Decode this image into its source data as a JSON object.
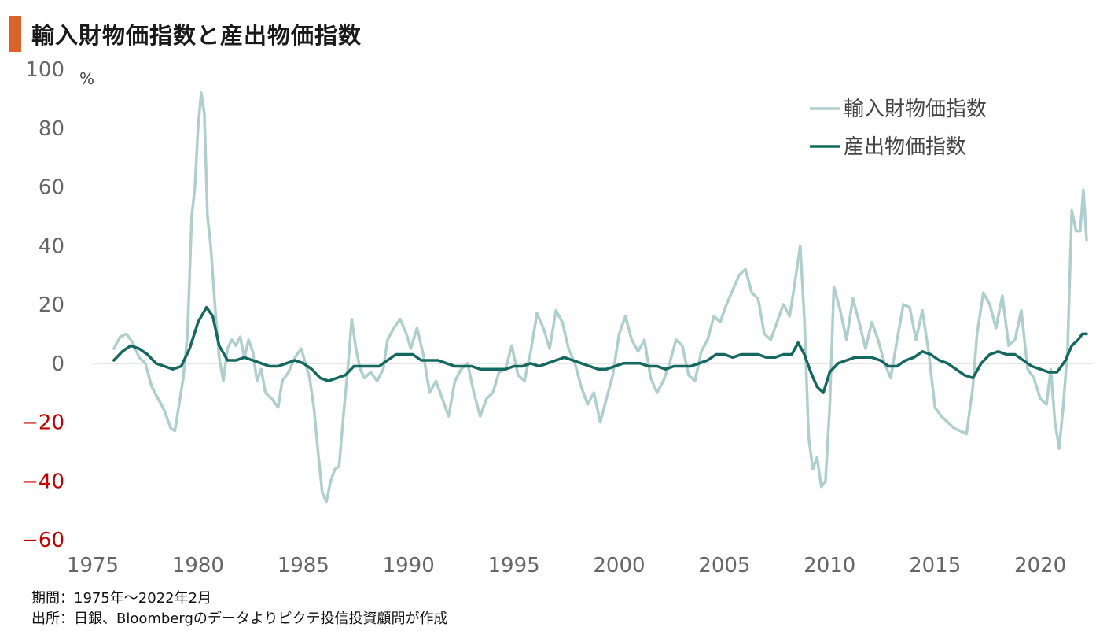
{
  "title": "輸入財物価指数と産出物価指数",
  "unit_label": "%",
  "colors": {
    "title_accent": "#d9652b",
    "import_series": "#aecfcd",
    "output_series": "#14685f",
    "negative_tick": "#c00000",
    "axis_tick": "#666666",
    "zero_line": "#cccccc"
  },
  "chart_data": {
    "type": "line",
    "xlabel": "",
    "ylabel": "",
    "xlim": [
      1975,
      2022.5
    ],
    "ylim": [
      -60,
      100
    ],
    "x_ticks": [
      1975,
      1980,
      1985,
      1990,
      1995,
      2000,
      2005,
      2010,
      2015,
      2020
    ],
    "y_ticks": [
      100,
      80,
      60,
      40,
      20,
      0,
      -20,
      -40,
      -60
    ],
    "grid": false,
    "legend_position": "top-right",
    "series": [
      {
        "name": "輸入財物価指数",
        "color": "#aecfcd",
        "points": [
          [
            1976.0,
            5
          ],
          [
            1976.3,
            9
          ],
          [
            1976.6,
            10
          ],
          [
            1976.9,
            7
          ],
          [
            1977.2,
            2
          ],
          [
            1977.5,
            0
          ],
          [
            1977.8,
            -8
          ],
          [
            1978.1,
            -12
          ],
          [
            1978.4,
            -16
          ],
          [
            1978.7,
            -22
          ],
          [
            1978.9,
            -23
          ],
          [
            1979.1,
            -14
          ],
          [
            1979.3,
            -5
          ],
          [
            1979.5,
            10
          ],
          [
            1979.7,
            50
          ],
          [
            1979.85,
            60
          ],
          [
            1980.0,
            80
          ],
          [
            1980.15,
            92
          ],
          [
            1980.3,
            85
          ],
          [
            1980.45,
            50
          ],
          [
            1980.6,
            40
          ],
          [
            1980.8,
            20
          ],
          [
            1981.0,
            2
          ],
          [
            1981.2,
            -6
          ],
          [
            1981.4,
            5
          ],
          [
            1981.6,
            8
          ],
          [
            1981.8,
            6
          ],
          [
            1982.0,
            9
          ],
          [
            1982.2,
            2
          ],
          [
            1982.4,
            8
          ],
          [
            1982.6,
            4
          ],
          [
            1982.8,
            -6
          ],
          [
            1983.0,
            -2
          ],
          [
            1983.2,
            -10
          ],
          [
            1983.5,
            -12
          ],
          [
            1983.8,
            -15
          ],
          [
            1984.0,
            -6
          ],
          [
            1984.3,
            -3
          ],
          [
            1984.6,
            2
          ],
          [
            1984.9,
            5
          ],
          [
            1985.1,
            0
          ],
          [
            1985.3,
            -5
          ],
          [
            1985.5,
            -15
          ],
          [
            1985.7,
            -30
          ],
          [
            1985.9,
            -44
          ],
          [
            1986.1,
            -47
          ],
          [
            1986.3,
            -40
          ],
          [
            1986.5,
            -36
          ],
          [
            1986.7,
            -35
          ],
          [
            1986.9,
            -18
          ],
          [
            1987.1,
            -3
          ],
          [
            1987.3,
            15
          ],
          [
            1987.5,
            5
          ],
          [
            1987.7,
            -2
          ],
          [
            1987.9,
            -5
          ],
          [
            1988.2,
            -3
          ],
          [
            1988.5,
            -6
          ],
          [
            1988.8,
            -2
          ],
          [
            1989.0,
            8
          ],
          [
            1989.3,
            12
          ],
          [
            1989.6,
            15
          ],
          [
            1989.9,
            10
          ],
          [
            1990.1,
            5
          ],
          [
            1990.4,
            12
          ],
          [
            1990.7,
            3
          ],
          [
            1991.0,
            -10
          ],
          [
            1991.3,
            -6
          ],
          [
            1991.6,
            -12
          ],
          [
            1991.9,
            -18
          ],
          [
            1992.2,
            -6
          ],
          [
            1992.5,
            -2
          ],
          [
            1992.8,
            0
          ],
          [
            1993.1,
            -10
          ],
          [
            1993.4,
            -18
          ],
          [
            1993.7,
            -12
          ],
          [
            1994.0,
            -10
          ],
          [
            1994.3,
            -3
          ],
          [
            1994.6,
            -2
          ],
          [
            1994.9,
            6
          ],
          [
            1995.2,
            -4
          ],
          [
            1995.5,
            -6
          ],
          [
            1995.8,
            4
          ],
          [
            1996.1,
            17
          ],
          [
            1996.4,
            12
          ],
          [
            1996.7,
            5
          ],
          [
            1997.0,
            18
          ],
          [
            1997.3,
            14
          ],
          [
            1997.6,
            5
          ],
          [
            1997.9,
            0
          ],
          [
            1998.2,
            -8
          ],
          [
            1998.5,
            -14
          ],
          [
            1998.8,
            -10
          ],
          [
            1999.1,
            -20
          ],
          [
            1999.4,
            -12
          ],
          [
            1999.7,
            -4
          ],
          [
            2000.0,
            10
          ],
          [
            2000.3,
            16
          ],
          [
            2000.6,
            8
          ],
          [
            2000.9,
            4
          ],
          [
            2001.2,
            8
          ],
          [
            2001.5,
            -5
          ],
          [
            2001.8,
            -10
          ],
          [
            2002.1,
            -6
          ],
          [
            2002.4,
            0
          ],
          [
            2002.7,
            8
          ],
          [
            2003.0,
            6
          ],
          [
            2003.3,
            -4
          ],
          [
            2003.6,
            -6
          ],
          [
            2003.9,
            4
          ],
          [
            2004.2,
            8
          ],
          [
            2004.5,
            16
          ],
          [
            2004.8,
            14
          ],
          [
            2005.1,
            20
          ],
          [
            2005.4,
            25
          ],
          [
            2005.7,
            30
          ],
          [
            2006.0,
            32
          ],
          [
            2006.3,
            24
          ],
          [
            2006.6,
            22
          ],
          [
            2006.9,
            10
          ],
          [
            2007.2,
            8
          ],
          [
            2007.5,
            14
          ],
          [
            2007.8,
            20
          ],
          [
            2008.1,
            16
          ],
          [
            2008.4,
            30
          ],
          [
            2008.6,
            40
          ],
          [
            2008.8,
            15
          ],
          [
            2009.0,
            -25
          ],
          [
            2009.2,
            -36
          ],
          [
            2009.4,
            -32
          ],
          [
            2009.6,
            -42
          ],
          [
            2009.8,
            -40
          ],
          [
            2010.0,
            -15
          ],
          [
            2010.2,
            26
          ],
          [
            2010.5,
            18
          ],
          [
            2010.8,
            8
          ],
          [
            2011.1,
            22
          ],
          [
            2011.4,
            14
          ],
          [
            2011.7,
            5
          ],
          [
            2012.0,
            14
          ],
          [
            2012.3,
            8
          ],
          [
            2012.6,
            0
          ],
          [
            2012.9,
            -5
          ],
          [
            2013.2,
            8
          ],
          [
            2013.5,
            20
          ],
          [
            2013.8,
            19
          ],
          [
            2014.1,
            8
          ],
          [
            2014.4,
            18
          ],
          [
            2014.7,
            4
          ],
          [
            2015.0,
            -15
          ],
          [
            2015.3,
            -18
          ],
          [
            2015.6,
            -20
          ],
          [
            2015.9,
            -22
          ],
          [
            2016.2,
            -23
          ],
          [
            2016.5,
            -24
          ],
          [
            2016.8,
            -8
          ],
          [
            2017.0,
            10
          ],
          [
            2017.3,
            24
          ],
          [
            2017.6,
            20
          ],
          [
            2017.9,
            12
          ],
          [
            2018.2,
            23
          ],
          [
            2018.5,
            6
          ],
          [
            2018.8,
            8
          ],
          [
            2019.1,
            18
          ],
          [
            2019.4,
            -2
          ],
          [
            2019.7,
            -5
          ],
          [
            2020.0,
            -12
          ],
          [
            2020.3,
            -14
          ],
          [
            2020.5,
            -2
          ],
          [
            2020.7,
            -20
          ],
          [
            2020.9,
            -29
          ],
          [
            2021.1,
            -14
          ],
          [
            2021.3,
            5
          ],
          [
            2021.5,
            52
          ],
          [
            2021.7,
            45
          ],
          [
            2021.9,
            45
          ],
          [
            2022.05,
            59
          ],
          [
            2022.2,
            42
          ]
        ]
      },
      {
        "name": "産出物価指数",
        "color": "#14685f",
        "points": [
          [
            1976.0,
            1
          ],
          [
            1976.4,
            4
          ],
          [
            1976.8,
            6
          ],
          [
            1977.2,
            5
          ],
          [
            1977.6,
            3
          ],
          [
            1978.0,
            0
          ],
          [
            1978.4,
            -1
          ],
          [
            1978.8,
            -2
          ],
          [
            1979.2,
            -1
          ],
          [
            1979.6,
            5
          ],
          [
            1980.0,
            14
          ],
          [
            1980.4,
            19
          ],
          [
            1980.7,
            16
          ],
          [
            1981.0,
            6
          ],
          [
            1981.4,
            1
          ],
          [
            1981.8,
            1
          ],
          [
            1982.2,
            2
          ],
          [
            1982.6,
            1
          ],
          [
            1983.0,
            0
          ],
          [
            1983.4,
            -1
          ],
          [
            1983.8,
            -1
          ],
          [
            1984.2,
            0
          ],
          [
            1984.6,
            1
          ],
          [
            1985.0,
            0
          ],
          [
            1985.4,
            -2
          ],
          [
            1985.8,
            -5
          ],
          [
            1986.2,
            -6
          ],
          [
            1986.6,
            -5
          ],
          [
            1987.0,
            -4
          ],
          [
            1987.4,
            -1
          ],
          [
            1987.8,
            -1
          ],
          [
            1988.2,
            -1
          ],
          [
            1988.6,
            -1
          ],
          [
            1989.0,
            1
          ],
          [
            1989.4,
            3
          ],
          [
            1989.8,
            3
          ],
          [
            1990.2,
            3
          ],
          [
            1990.6,
            1
          ],
          [
            1991.0,
            1
          ],
          [
            1991.4,
            1
          ],
          [
            1991.8,
            0
          ],
          [
            1992.2,
            -1
          ],
          [
            1992.6,
            -1
          ],
          [
            1993.0,
            -1
          ],
          [
            1993.4,
            -2
          ],
          [
            1993.8,
            -2
          ],
          [
            1994.2,
            -2
          ],
          [
            1994.6,
            -2
          ],
          [
            1995.0,
            -1
          ],
          [
            1995.4,
            -1
          ],
          [
            1995.8,
            0
          ],
          [
            1996.2,
            -1
          ],
          [
            1996.6,
            0
          ],
          [
            1997.0,
            1
          ],
          [
            1997.4,
            2
          ],
          [
            1997.8,
            1
          ],
          [
            1998.2,
            0
          ],
          [
            1998.6,
            -1
          ],
          [
            1999.0,
            -2
          ],
          [
            1999.4,
            -2
          ],
          [
            1999.8,
            -1
          ],
          [
            2000.2,
            0
          ],
          [
            2000.6,
            0
          ],
          [
            2001.0,
            0
          ],
          [
            2001.4,
            -1
          ],
          [
            2001.8,
            -1
          ],
          [
            2002.2,
            -2
          ],
          [
            2002.6,
            -1
          ],
          [
            2003.0,
            -1
          ],
          [
            2003.4,
            -1
          ],
          [
            2003.8,
            0
          ],
          [
            2004.2,
            1
          ],
          [
            2004.6,
            3
          ],
          [
            2005.0,
            3
          ],
          [
            2005.4,
            2
          ],
          [
            2005.8,
            3
          ],
          [
            2006.2,
            3
          ],
          [
            2006.6,
            3
          ],
          [
            2007.0,
            2
          ],
          [
            2007.4,
            2
          ],
          [
            2007.8,
            3
          ],
          [
            2008.2,
            3
          ],
          [
            2008.5,
            7
          ],
          [
            2008.8,
            3
          ],
          [
            2009.1,
            -3
          ],
          [
            2009.4,
            -8
          ],
          [
            2009.7,
            -10
          ],
          [
            2010.0,
            -3
          ],
          [
            2010.4,
            0
          ],
          [
            2010.8,
            1
          ],
          [
            2011.2,
            2
          ],
          [
            2011.6,
            2
          ],
          [
            2012.0,
            2
          ],
          [
            2012.4,
            1
          ],
          [
            2012.8,
            -1
          ],
          [
            2013.2,
            -1
          ],
          [
            2013.6,
            1
          ],
          [
            2014.0,
            2
          ],
          [
            2014.4,
            4
          ],
          [
            2014.8,
            3
          ],
          [
            2015.2,
            1
          ],
          [
            2015.6,
            0
          ],
          [
            2016.0,
            -2
          ],
          [
            2016.4,
            -4
          ],
          [
            2016.8,
            -5
          ],
          [
            2017.2,
            0
          ],
          [
            2017.6,
            3
          ],
          [
            2018.0,
            4
          ],
          [
            2018.4,
            3
          ],
          [
            2018.8,
            3
          ],
          [
            2019.2,
            1
          ],
          [
            2019.6,
            -1
          ],
          [
            2020.0,
            -2
          ],
          [
            2020.4,
            -3
          ],
          [
            2020.8,
            -3
          ],
          [
            2021.2,
            1
          ],
          [
            2021.5,
            6
          ],
          [
            2021.8,
            8
          ],
          [
            2022.0,
            10
          ],
          [
            2022.2,
            10
          ]
        ]
      }
    ]
  },
  "footnotes": {
    "period": "期間：1975年～2022年2月",
    "source": "出所：日銀、Bloombergのデータよりピクテ投信投資顧問が作成"
  }
}
